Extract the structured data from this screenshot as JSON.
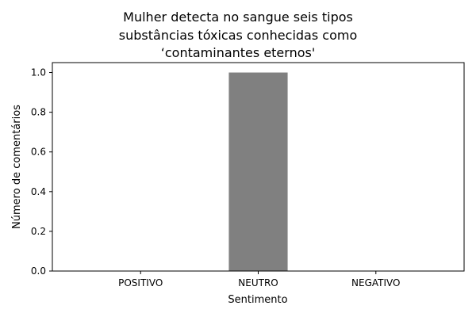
{
  "chart_data": {
    "type": "bar",
    "title_lines": [
      "Mulher detecta no sangue seis tipos",
      "substâncias tóxicas conhecidas como",
      "‘contaminantes eternos'"
    ],
    "categories": [
      "POSITIVO",
      "NEUTRO",
      "NEGATIVO"
    ],
    "values": [
      0,
      1,
      0
    ],
    "xlabel": "Sentimento",
    "ylabel": "Número de comentários",
    "ylim": [
      0,
      1.05
    ],
    "yticks": [
      "0.0",
      "0.2",
      "0.4",
      "0.6",
      "0.8",
      "1.0"
    ],
    "bar_color": "#808080",
    "grid": false
  }
}
